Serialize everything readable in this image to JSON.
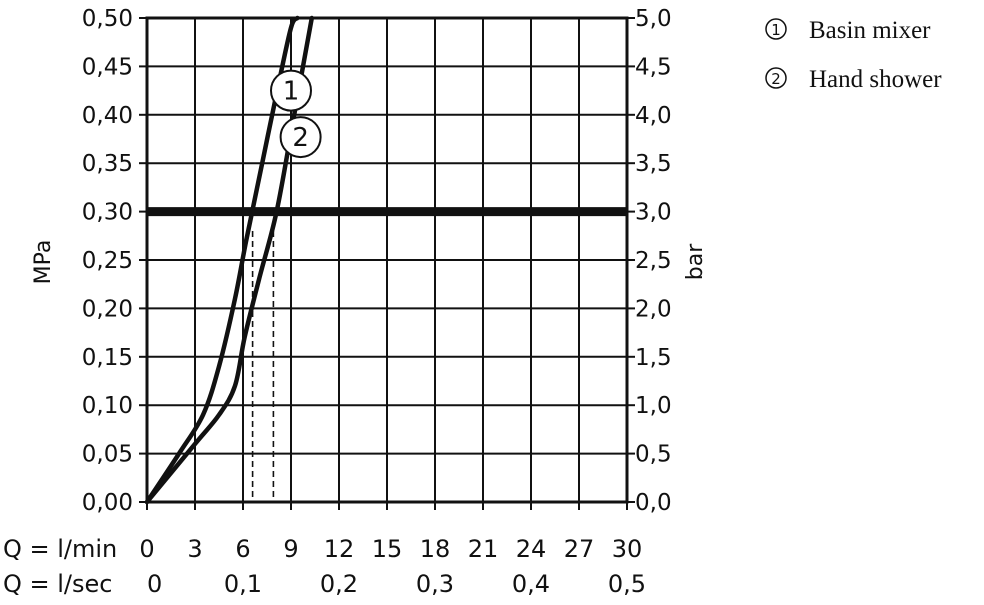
{
  "chart_data": {
    "type": "line",
    "title": "",
    "ylabel_left": "MPa",
    "ylabel_right": "bar",
    "x_label_lmin": "Q = l/min",
    "x_label_lsec": "Q = l/sec",
    "x_ticks_lmin": [
      "0",
      "3",
      "6",
      "9",
      "12",
      "15",
      "18",
      "21",
      "24",
      "27",
      "30"
    ],
    "x_ticks_lsec": [
      "0",
      "0,1",
      "0,2",
      "0,3",
      "0,4",
      "0,5"
    ],
    "y_ticks_mpa": [
      "0,00",
      "0,05",
      "0,10",
      "0,15",
      "0,20",
      "0,25",
      "0,30",
      "0,35",
      "0,40",
      "0,45",
      "0,50"
    ],
    "y_ticks_bar": [
      "0,0",
      "0,5",
      "1,0",
      "1,5",
      "2,0",
      "2,5",
      "3,0",
      "3,5",
      "4,0",
      "4,5",
      "5,0"
    ],
    "xlim": [
      0,
      30
    ],
    "ylim": [
      0,
      0.5
    ],
    "grid": true,
    "reference_line": {
      "y": 0.3,
      "style": "thick"
    },
    "series": [
      {
        "name": "Basin mixer",
        "marker": "1",
        "x": [
          0,
          2,
          3.5,
          4.5,
          5.5,
          6.2,
          7.2,
          8.2,
          9.0,
          9.4
        ],
        "y": [
          0,
          0.05,
          0.09,
          0.14,
          0.21,
          0.27,
          0.35,
          0.43,
          0.49,
          0.5
        ],
        "dropline_x": 6.6
      },
      {
        "name": "Hand shower",
        "marker": "2",
        "x": [
          0,
          3,
          4.5,
          5.5,
          6.1,
          7,
          8.1,
          9.2,
          10.3
        ],
        "y": [
          0,
          0.06,
          0.09,
          0.12,
          0.17,
          0.23,
          0.3,
          0.4,
          0.5
        ],
        "dropline_x": 7.9
      }
    ],
    "legend": {
      "position": "top-right",
      "items": [
        {
          "marker": "1",
          "label": "Basin mixer"
        },
        {
          "marker": "2",
          "label": "Hand shower"
        }
      ]
    },
    "colors": {
      "line": "#111111",
      "grid": "#111111",
      "background": "#ffffff"
    }
  }
}
